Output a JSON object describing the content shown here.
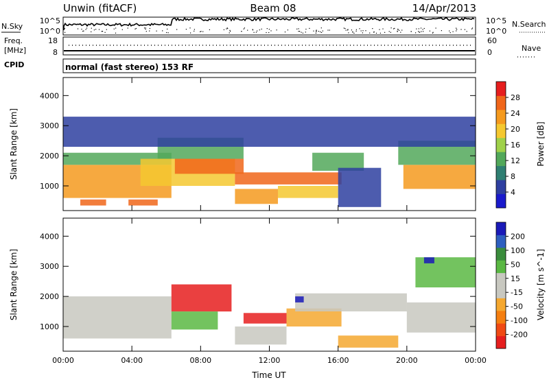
{
  "header": {
    "station": "Unwin (fitACF)",
    "beam": "Beam 08",
    "date": "14/Apr/2013"
  },
  "status_panels": {
    "nsky_label": "N.Sky",
    "nsky_ticks": [
      "10^5",
      "10^0"
    ],
    "nsearch_label": "N.Search",
    "freq_label_1": "Freq.",
    "freq_label_2": "[MHz]",
    "freq_ticks": [
      "18",
      "8"
    ],
    "nave_label": "Nave",
    "nave_ticks": [
      "60",
      "0"
    ],
    "cpid_label": "CPID",
    "cpid_text": "normal (fast stereo) 153 RF"
  },
  "colors": {
    "power_scale": [
      "#1a1acc",
      "#2e3fa0",
      "#2f7f72",
      "#52a85a",
      "#9fd14a",
      "#f5c830",
      "#f59a1e",
      "#f0661a",
      "#e61e1e"
    ],
    "velocity_scale": [
      "#e61e1e",
      "#f04a14",
      "#f57f10",
      "#f5a830",
      "#c8c8c0",
      "#c8c8c0",
      "#5ab843",
      "#3a8c3c",
      "#2e5fbf",
      "#1a1ab8"
    ]
  },
  "chart_data": [
    {
      "type": "heatmap",
      "panel": "power",
      "xlabel": "",
      "ylabel": "Slant Range [km]",
      "x_ticks": [
        "00:00",
        "04:00",
        "08:00",
        "12:00",
        "16:00",
        "20:00",
        "00:00"
      ],
      "x_range_hours": [
        0,
        24
      ],
      "y_ticks": [
        1000,
        2000,
        3000,
        4000
      ],
      "ylim": [
        180,
        4600
      ],
      "colorbar": {
        "label": "Power [dB]",
        "ticks": [
          4,
          8,
          12,
          16,
          20,
          24,
          28
        ],
        "range": [
          0,
          32
        ]
      },
      "bands": [
        {
          "t0": 0.0,
          "t1": 6.3,
          "r0": 600,
          "r1": 1700,
          "level": 22
        },
        {
          "t0": 0.0,
          "t1": 6.3,
          "r0": 1700,
          "r1": 2100,
          "level": 12
        },
        {
          "t0": 4.5,
          "t1": 10.0,
          "r0": 1000,
          "r1": 1900,
          "level": 20
        },
        {
          "t0": 6.5,
          "t1": 10.5,
          "r0": 1400,
          "r1": 1900,
          "level": 28
        },
        {
          "t0": 5.5,
          "t1": 10.5,
          "r0": 1900,
          "r1": 2600,
          "level": 12
        },
        {
          "t0": 10.0,
          "t1": 16.2,
          "r0": 1050,
          "r1": 1450,
          "level": 26
        },
        {
          "t0": 10.0,
          "t1": 12.5,
          "r0": 400,
          "r1": 900,
          "level": 22
        },
        {
          "t0": 12.5,
          "t1": 16.0,
          "r0": 600,
          "r1": 1000,
          "level": 18
        },
        {
          "t0": 14.5,
          "t1": 17.5,
          "r0": 1500,
          "r1": 2100,
          "level": 14
        },
        {
          "t0": 16.0,
          "t1": 18.5,
          "r0": 300,
          "r1": 1600,
          "level": 6
        },
        {
          "t0": 19.8,
          "t1": 24.0,
          "r0": 900,
          "r1": 1700,
          "level": 24
        },
        {
          "t0": 19.5,
          "t1": 24.0,
          "r0": 1700,
          "r1": 2500,
          "level": 12
        },
        {
          "t0": 0.0,
          "t1": 24.0,
          "r0": 2300,
          "r1": 3300,
          "level": 5
        },
        {
          "t0": 1.0,
          "t1": 2.5,
          "r0": 350,
          "r1": 550,
          "level": 28
        },
        {
          "t0": 3.8,
          "t1": 5.5,
          "r0": 350,
          "r1": 550,
          "level": 28
        }
      ]
    },
    {
      "type": "heatmap",
      "panel": "velocity",
      "xlabel": "Time UT",
      "ylabel": "Slant Range [km]",
      "x_ticks": [
        "00:00",
        "04:00",
        "08:00",
        "12:00",
        "16:00",
        "20:00",
        "00:00"
      ],
      "x_range_hours": [
        0,
        24
      ],
      "y_ticks": [
        1000,
        2000,
        3000,
        4000
      ],
      "ylim": [
        180,
        4600
      ],
      "colorbar": {
        "label": "Velocity [m s^-1]",
        "ticks": [
          200,
          100,
          50,
          15,
          -15,
          -50,
          -100,
          -200
        ],
        "range": [
          -250,
          250
        ]
      },
      "bands": [
        {
          "t0": 0.0,
          "t1": 6.3,
          "r0": 600,
          "r1": 2000,
          "level": 0
        },
        {
          "t0": 6.3,
          "t1": 9.8,
          "r0": 1500,
          "r1": 2400,
          "level": -220
        },
        {
          "t0": 6.3,
          "t1": 9.0,
          "r0": 900,
          "r1": 1500,
          "level": 60
        },
        {
          "t0": 10.5,
          "t1": 13.0,
          "r0": 1100,
          "r1": 1450,
          "level": -220
        },
        {
          "t0": 13.0,
          "t1": 16.2,
          "r0": 1000,
          "r1": 1600,
          "level": -80
        },
        {
          "t0": 10.0,
          "t1": 13.0,
          "r0": 400,
          "r1": 1000,
          "level": 0
        },
        {
          "t0": 13.5,
          "t1": 20.0,
          "r0": 1500,
          "r1": 2100,
          "level": 0
        },
        {
          "t0": 16.0,
          "t1": 19.5,
          "r0": 300,
          "r1": 700,
          "level": -60
        },
        {
          "t0": 20.0,
          "t1": 24.0,
          "r0": 800,
          "r1": 1800,
          "level": 0
        },
        {
          "t0": 20.5,
          "t1": 24.0,
          "r0": 2300,
          "r1": 3300,
          "level": 60
        },
        {
          "t0": 13.5,
          "t1": 14.0,
          "r0": 1800,
          "r1": 2000,
          "level": 240
        },
        {
          "t0": 21.0,
          "t1": 21.6,
          "r0": 3100,
          "r1": 3300,
          "level": 200
        }
      ]
    }
  ]
}
